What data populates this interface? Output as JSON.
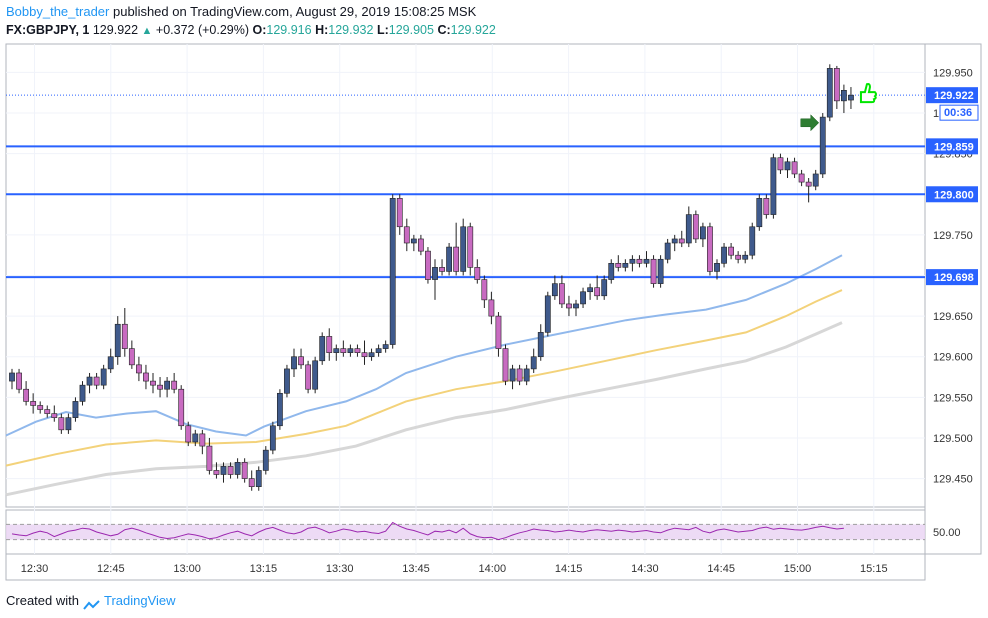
{
  "header": {
    "author": "Bobby_the_trader",
    "published": "published on TradingView.com, August 29, 2019 15:08:25 MSK",
    "symbol": "FX:GBPJPY, 1",
    "last": "129.922",
    "change": "+0.372 (+0.29%)",
    "o_label": "O:",
    "o_value": "129.916",
    "h_label": "H:",
    "h_value": "129.932",
    "l_label": "L:",
    "l_value": "129.905",
    "c_label": "C:",
    "c_value": "129.922"
  },
  "footer": {
    "created_with": "Created with",
    "brand": "TradingView"
  },
  "colors": {
    "bull_body": "#3f5a8c",
    "bear_body": "#c86bc1",
    "wick": "#222222",
    "hline": "#2962ff",
    "ma_fast": "#90b8ec",
    "ma_mid": "#f3d27a",
    "ma_slow": "#d7d7d7",
    "rsi": "#9c27b0",
    "rsi_band": "#e9d2f2",
    "arrow": "#2e7d32",
    "thumb": "#00e600"
  },
  "chart_data": {
    "type": "candlestick",
    "symbol": "FX:GBPJPY",
    "interval": "1",
    "x_ticks": [
      "12:30",
      "12:45",
      "13:00",
      "13:15",
      "13:30",
      "13:45",
      "14:00",
      "14:15",
      "14:30",
      "14:45",
      "15:00",
      "15:15"
    ],
    "y_ticks": [
      "129.450",
      "129.500",
      "129.550",
      "129.600",
      "129.650",
      "129.700",
      "129.750",
      "129.800",
      "129.850",
      "129.900",
      "129.950"
    ],
    "ylim": [
      129.415,
      129.985
    ],
    "horizontal_levels": [
      {
        "label": "129.859",
        "value": 129.859
      },
      {
        "label": "129.800",
        "value": 129.8
      },
      {
        "label": "129.698",
        "value": 129.698
      }
    ],
    "last_price_label": "129.922",
    "countdown_label": "00:36",
    "rsi": {
      "level_label": "50.00",
      "level": 50,
      "band": [
        30,
        70
      ]
    },
    "candles": [
      [
        129.57,
        129.585,
        129.56,
        129.58
      ],
      [
        129.58,
        129.585,
        129.555,
        129.56
      ],
      [
        129.56,
        129.57,
        129.54,
        129.545
      ],
      [
        129.545,
        129.555,
        129.53,
        129.54
      ],
      [
        129.54,
        129.545,
        129.53,
        129.535
      ],
      [
        129.535,
        129.54,
        129.525,
        129.53
      ],
      [
        129.53,
        129.54,
        129.52,
        129.525
      ],
      [
        129.525,
        129.53,
        129.505,
        129.51
      ],
      [
        129.51,
        129.53,
        129.505,
        129.525
      ],
      [
        129.525,
        129.55,
        129.52,
        129.545
      ],
      [
        129.545,
        129.57,
        129.54,
        129.565
      ],
      [
        129.565,
        129.58,
        129.555,
        129.575
      ],
      [
        129.575,
        129.58,
        129.56,
        129.565
      ],
      [
        129.565,
        129.59,
        129.56,
        129.585
      ],
      [
        129.585,
        129.61,
        129.58,
        129.6
      ],
      [
        129.6,
        129.65,
        129.59,
        129.64
      ],
      [
        129.64,
        129.66,
        129.6,
        129.61
      ],
      [
        129.61,
        129.62,
        129.585,
        129.59
      ],
      [
        129.59,
        129.6,
        129.57,
        129.58
      ],
      [
        129.58,
        129.59,
        129.56,
        129.57
      ],
      [
        129.57,
        129.58,
        129.555,
        129.565
      ],
      [
        129.565,
        129.575,
        129.55,
        129.56
      ],
      [
        129.56,
        129.575,
        129.55,
        129.57
      ],
      [
        129.57,
        129.58,
        129.555,
        129.56
      ],
      [
        129.56,
        129.565,
        129.51,
        129.515
      ],
      [
        129.515,
        129.52,
        129.49,
        129.495
      ],
      [
        129.495,
        129.51,
        129.49,
        129.505
      ],
      [
        129.505,
        129.51,
        129.48,
        129.49
      ],
      [
        129.49,
        129.5,
        129.455,
        129.46
      ],
      [
        129.46,
        129.47,
        129.45,
        129.455
      ],
      [
        129.455,
        129.47,
        129.445,
        129.465
      ],
      [
        129.465,
        129.47,
        129.45,
        129.455
      ],
      [
        129.455,
        129.475,
        129.45,
        129.47
      ],
      [
        129.47,
        129.475,
        129.445,
        129.45
      ],
      [
        129.45,
        129.46,
        129.435,
        129.44
      ],
      [
        129.44,
        129.465,
        129.435,
        129.46
      ],
      [
        129.46,
        129.49,
        129.455,
        129.485
      ],
      [
        129.485,
        129.52,
        129.48,
        129.515
      ],
      [
        129.515,
        129.56,
        129.51,
        129.555
      ],
      [
        129.555,
        129.59,
        129.55,
        129.585
      ],
      [
        129.585,
        129.61,
        129.575,
        129.6
      ],
      [
        129.6,
        129.61,
        129.585,
        129.59
      ],
      [
        129.59,
        129.595,
        129.555,
        129.56
      ],
      [
        129.56,
        129.6,
        129.555,
        129.595
      ],
      [
        129.595,
        129.63,
        129.59,
        129.625
      ],
      [
        129.625,
        129.635,
        129.595,
        129.605
      ],
      [
        129.605,
        129.615,
        129.595,
        129.61
      ],
      [
        129.61,
        129.62,
        129.6,
        129.605
      ],
      [
        129.605,
        129.615,
        129.6,
        129.61
      ],
      [
        129.61,
        129.615,
        129.6,
        129.605
      ],
      [
        129.605,
        129.62,
        129.59,
        129.6
      ],
      [
        129.6,
        129.61,
        129.595,
        129.605
      ],
      [
        129.605,
        129.615,
        129.6,
        129.61
      ],
      [
        129.61,
        129.62,
        129.605,
        129.615
      ],
      [
        129.615,
        129.8,
        129.61,
        129.795
      ],
      [
        129.795,
        129.8,
        129.75,
        129.76
      ],
      [
        129.76,
        129.77,
        129.73,
        129.74
      ],
      [
        129.74,
        129.75,
        129.73,
        129.745
      ],
      [
        129.745,
        129.75,
        129.725,
        129.73
      ],
      [
        129.73,
        129.735,
        129.69,
        129.695
      ],
      [
        129.695,
        129.72,
        129.67,
        129.71
      ],
      [
        129.71,
        129.72,
        129.7,
        129.705
      ],
      [
        129.705,
        129.74,
        129.7,
        129.735
      ],
      [
        129.735,
        129.765,
        129.7,
        129.705
      ],
      [
        129.705,
        129.77,
        129.7,
        129.76
      ],
      [
        129.76,
        129.765,
        129.7,
        129.71
      ],
      [
        129.71,
        129.72,
        129.69,
        129.695
      ],
      [
        129.695,
        129.7,
        129.66,
        129.67
      ],
      [
        129.67,
        129.68,
        129.64,
        129.65
      ],
      [
        129.65,
        129.655,
        129.6,
        129.61
      ],
      [
        129.61,
        129.615,
        129.565,
        129.57
      ],
      [
        129.57,
        129.59,
        129.56,
        129.585
      ],
      [
        129.585,
        129.59,
        129.565,
        129.57
      ],
      [
        129.57,
        129.59,
        129.565,
        129.585
      ],
      [
        129.585,
        129.61,
        129.58,
        129.6
      ],
      [
        129.6,
        129.64,
        129.595,
        129.63
      ],
      [
        129.63,
        129.68,
        129.625,
        129.675
      ],
      [
        129.675,
        129.7,
        129.67,
        129.69
      ],
      [
        129.69,
        129.7,
        129.66,
        129.665
      ],
      [
        129.665,
        129.675,
        129.65,
        129.66
      ],
      [
        129.66,
        129.67,
        129.65,
        129.665
      ],
      [
        129.665,
        129.685,
        129.66,
        129.68
      ],
      [
        129.68,
        129.69,
        129.67,
        129.685
      ],
      [
        129.685,
        129.7,
        129.67,
        129.675
      ],
      [
        129.675,
        129.7,
        129.67,
        129.695
      ],
      [
        129.695,
        129.72,
        129.69,
        129.715
      ],
      [
        129.715,
        129.725,
        129.705,
        129.71
      ],
      [
        129.71,
        129.72,
        129.705,
        129.715
      ],
      [
        129.715,
        129.725,
        129.705,
        129.72
      ],
      [
        129.72,
        129.725,
        129.71,
        129.715
      ],
      [
        129.715,
        129.73,
        129.71,
        129.72
      ],
      [
        129.72,
        129.725,
        129.685,
        129.69
      ],
      [
        129.69,
        129.725,
        129.685,
        129.72
      ],
      [
        129.72,
        129.745,
        129.715,
        129.74
      ],
      [
        129.74,
        129.75,
        129.73,
        129.745
      ],
      [
        129.745,
        129.755,
        129.735,
        129.74
      ],
      [
        129.74,
        129.785,
        129.735,
        129.775
      ],
      [
        129.775,
        129.78,
        129.74,
        129.745
      ],
      [
        129.745,
        129.765,
        129.735,
        129.76
      ],
      [
        129.76,
        129.765,
        129.7,
        129.705
      ],
      [
        129.705,
        129.72,
        129.695,
        129.715
      ],
      [
        129.715,
        129.74,
        129.71,
        129.735
      ],
      [
        129.735,
        129.74,
        129.72,
        129.725
      ],
      [
        129.725,
        129.73,
        129.715,
        129.72
      ],
      [
        129.72,
        129.73,
        129.715,
        129.725
      ],
      [
        129.725,
        129.765,
        129.72,
        129.76
      ],
      [
        129.76,
        129.8,
        129.755,
        129.795
      ],
      [
        129.795,
        129.8,
        129.77,
        129.775
      ],
      [
        129.775,
        129.85,
        129.77,
        129.845
      ],
      [
        129.845,
        129.85,
        129.825,
        129.83
      ],
      [
        129.83,
        129.845,
        129.82,
        129.84
      ],
      [
        129.84,
        129.845,
        129.82,
        129.825
      ],
      [
        129.825,
        129.83,
        129.81,
        129.815
      ],
      [
        129.815,
        129.82,
        129.79,
        129.81
      ],
      [
        129.81,
        129.83,
        129.805,
        129.825
      ],
      [
        129.825,
        129.9,
        129.82,
        129.895
      ],
      [
        129.895,
        129.96,
        129.89,
        129.955
      ],
      [
        129.955,
        129.958,
        129.905,
        129.915
      ],
      [
        129.915,
        129.935,
        129.9,
        129.928
      ],
      [
        129.916,
        129.932,
        129.905,
        129.922
      ]
    ],
    "ma_fast": [
      [
        0,
        129.503
      ],
      [
        30,
        129.52
      ],
      [
        60,
        129.532
      ],
      [
        90,
        129.525
      ],
      [
        120,
        129.53
      ],
      [
        150,
        129.533
      ],
      [
        180,
        129.517
      ],
      [
        210,
        129.508
      ],
      [
        240,
        129.503
      ],
      [
        258,
        129.514
      ],
      [
        300,
        129.533
      ],
      [
        340,
        129.545
      ],
      [
        370,
        129.56
      ],
      [
        400,
        129.58
      ],
      [
        450,
        129.6
      ],
      [
        500,
        129.615
      ],
      [
        540,
        129.625
      ],
      [
        580,
        129.635
      ],
      [
        620,
        129.645
      ],
      [
        660,
        129.652
      ],
      [
        700,
        129.658
      ],
      [
        740,
        129.67
      ],
      [
        780,
        129.69
      ],
      [
        810,
        129.708
      ],
      [
        836,
        129.725
      ]
    ],
    "ma_mid": [
      [
        0,
        129.466
      ],
      [
        50,
        129.48
      ],
      [
        100,
        129.492
      ],
      [
        150,
        129.497
      ],
      [
        200,
        129.493
      ],
      [
        250,
        129.495
      ],
      [
        300,
        129.505
      ],
      [
        340,
        129.515
      ],
      [
        370,
        129.53
      ],
      [
        400,
        129.545
      ],
      [
        450,
        129.56
      ],
      [
        500,
        129.57
      ],
      [
        550,
        129.582
      ],
      [
        600,
        129.595
      ],
      [
        650,
        129.608
      ],
      [
        700,
        129.62
      ],
      [
        740,
        129.63
      ],
      [
        780,
        129.65
      ],
      [
        810,
        129.668
      ],
      [
        836,
        129.682
      ]
    ],
    "ma_slow": [
      [
        0,
        129.43
      ],
      [
        50,
        129.443
      ],
      [
        100,
        129.455
      ],
      [
        150,
        129.462
      ],
      [
        200,
        129.465
      ],
      [
        250,
        129.47
      ],
      [
        300,
        129.478
      ],
      [
        350,
        129.49
      ],
      [
        400,
        129.51
      ],
      [
        450,
        129.525
      ],
      [
        500,
        129.535
      ],
      [
        550,
        129.548
      ],
      [
        600,
        129.56
      ],
      [
        650,
        129.572
      ],
      [
        700,
        129.585
      ],
      [
        740,
        129.595
      ],
      [
        780,
        129.612
      ],
      [
        810,
        129.628
      ],
      [
        836,
        129.642
      ]
    ],
    "rsi_values": [
      45,
      42,
      40,
      47,
      52,
      48,
      38,
      45,
      52,
      55,
      60,
      58,
      50,
      45,
      40,
      44,
      56,
      60,
      55,
      48,
      42,
      36,
      33,
      35,
      40,
      45,
      42,
      38,
      32,
      35,
      42,
      48,
      52,
      45,
      40,
      50,
      58,
      62,
      55,
      48,
      45,
      50,
      60,
      63,
      56,
      48,
      52,
      58,
      55,
      50,
      52,
      48,
      46,
      52,
      75,
      65,
      58,
      54,
      48,
      42,
      52,
      50,
      55,
      48,
      60,
      45,
      38,
      35,
      36,
      30,
      35,
      42,
      48,
      52,
      58,
      55,
      54,
      50,
      52,
      55,
      52,
      50,
      54,
      56,
      54,
      52,
      55,
      53,
      50,
      52,
      54,
      50,
      48,
      55,
      60,
      58,
      56,
      62,
      52,
      48,
      55,
      58,
      54,
      50,
      52,
      54,
      60,
      63,
      57,
      60,
      58,
      56,
      55,
      58,
      62,
      65,
      61,
      58,
      60
    ]
  }
}
